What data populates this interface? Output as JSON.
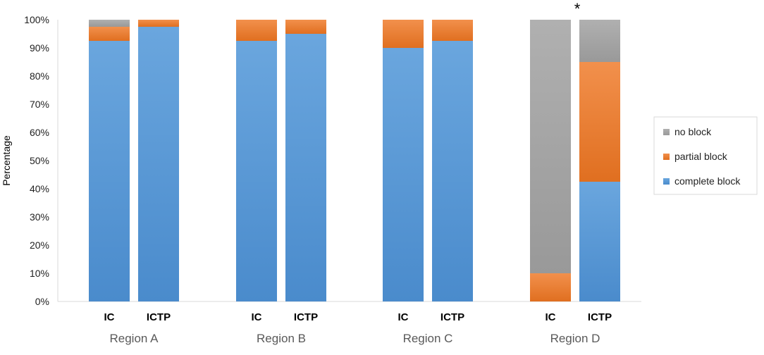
{
  "chart_data": {
    "type": "bar",
    "stacked": true,
    "ylabel": "Percentage",
    "ylim": [
      0,
      100
    ],
    "y_ticks": [
      "0%",
      "10%",
      "20%",
      "30%",
      "40%",
      "50%",
      "60%",
      "70%",
      "80%",
      "90%",
      "100%"
    ],
    "grid": false,
    "legend_position": "right",
    "groups": [
      "Region A",
      "Region B",
      "Region C",
      "Region D"
    ],
    "categories": [
      "IC",
      "ICTP",
      "IC",
      "ICTP",
      "IC",
      "ICTP",
      "IC",
      "ICTP"
    ],
    "series": [
      {
        "name": "complete block",
        "color": "#5b9bd5",
        "values": [
          92.5,
          97.5,
          92.5,
          95,
          90,
          92.5,
          0,
          42.5
        ]
      },
      {
        "name": "partial block",
        "color": "#ed7d31",
        "values": [
          5,
          2.5,
          7.5,
          5,
          10,
          7.5,
          10,
          42.5
        ]
      },
      {
        "name": "no block",
        "color": "#a5a5a5",
        "values": [
          2.5,
          0,
          0,
          0,
          0,
          0,
          90,
          15
        ]
      }
    ],
    "legend_order": [
      "no block",
      "partial block",
      "complete block"
    ],
    "annotations": [
      {
        "text": "*",
        "category_index": 7
      }
    ]
  }
}
